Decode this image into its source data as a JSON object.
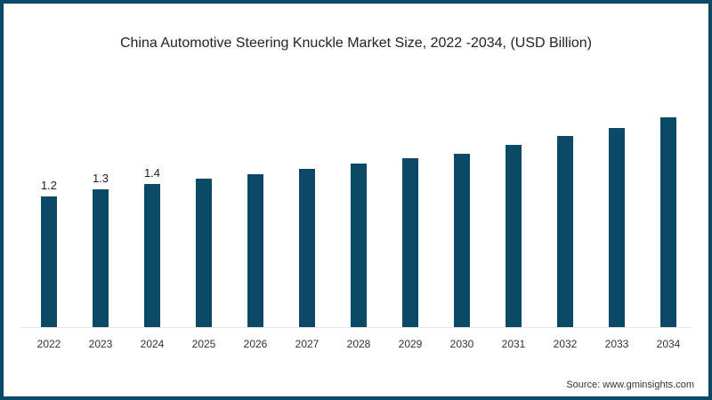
{
  "title": "China Automotive Steering Knuckle Market Size, 2022 -2034, (USD Billion)",
  "source": "Source: www.gminsights.com",
  "colors": {
    "bar": "#0b4a66",
    "border": "#0b4a66",
    "background": "#ffffff"
  },
  "chart_data": {
    "type": "bar",
    "title": "China Automotive Steering Knuckle Market Size, 2022 -2034, (USD Billion)",
    "xlabel": "",
    "ylabel": "USD Billion",
    "categories": [
      "2022",
      "2023",
      "2024",
      "2025",
      "2026",
      "2027",
      "2028",
      "2029",
      "2030",
      "2031",
      "2032",
      "2033",
      "2034"
    ],
    "values": [
      1.2,
      1.3,
      1.4,
      1.45,
      1.5,
      1.55,
      1.6,
      1.65,
      1.7,
      1.78,
      1.87,
      1.95,
      2.05
    ],
    "data_labels": [
      "1.2",
      "1.3",
      "1.4",
      "",
      "",
      "",
      "",
      "",
      "",
      "",
      "",
      "",
      ""
    ],
    "grid": false,
    "legend": "none",
    "ylim": [
      0,
      2.2
    ]
  }
}
